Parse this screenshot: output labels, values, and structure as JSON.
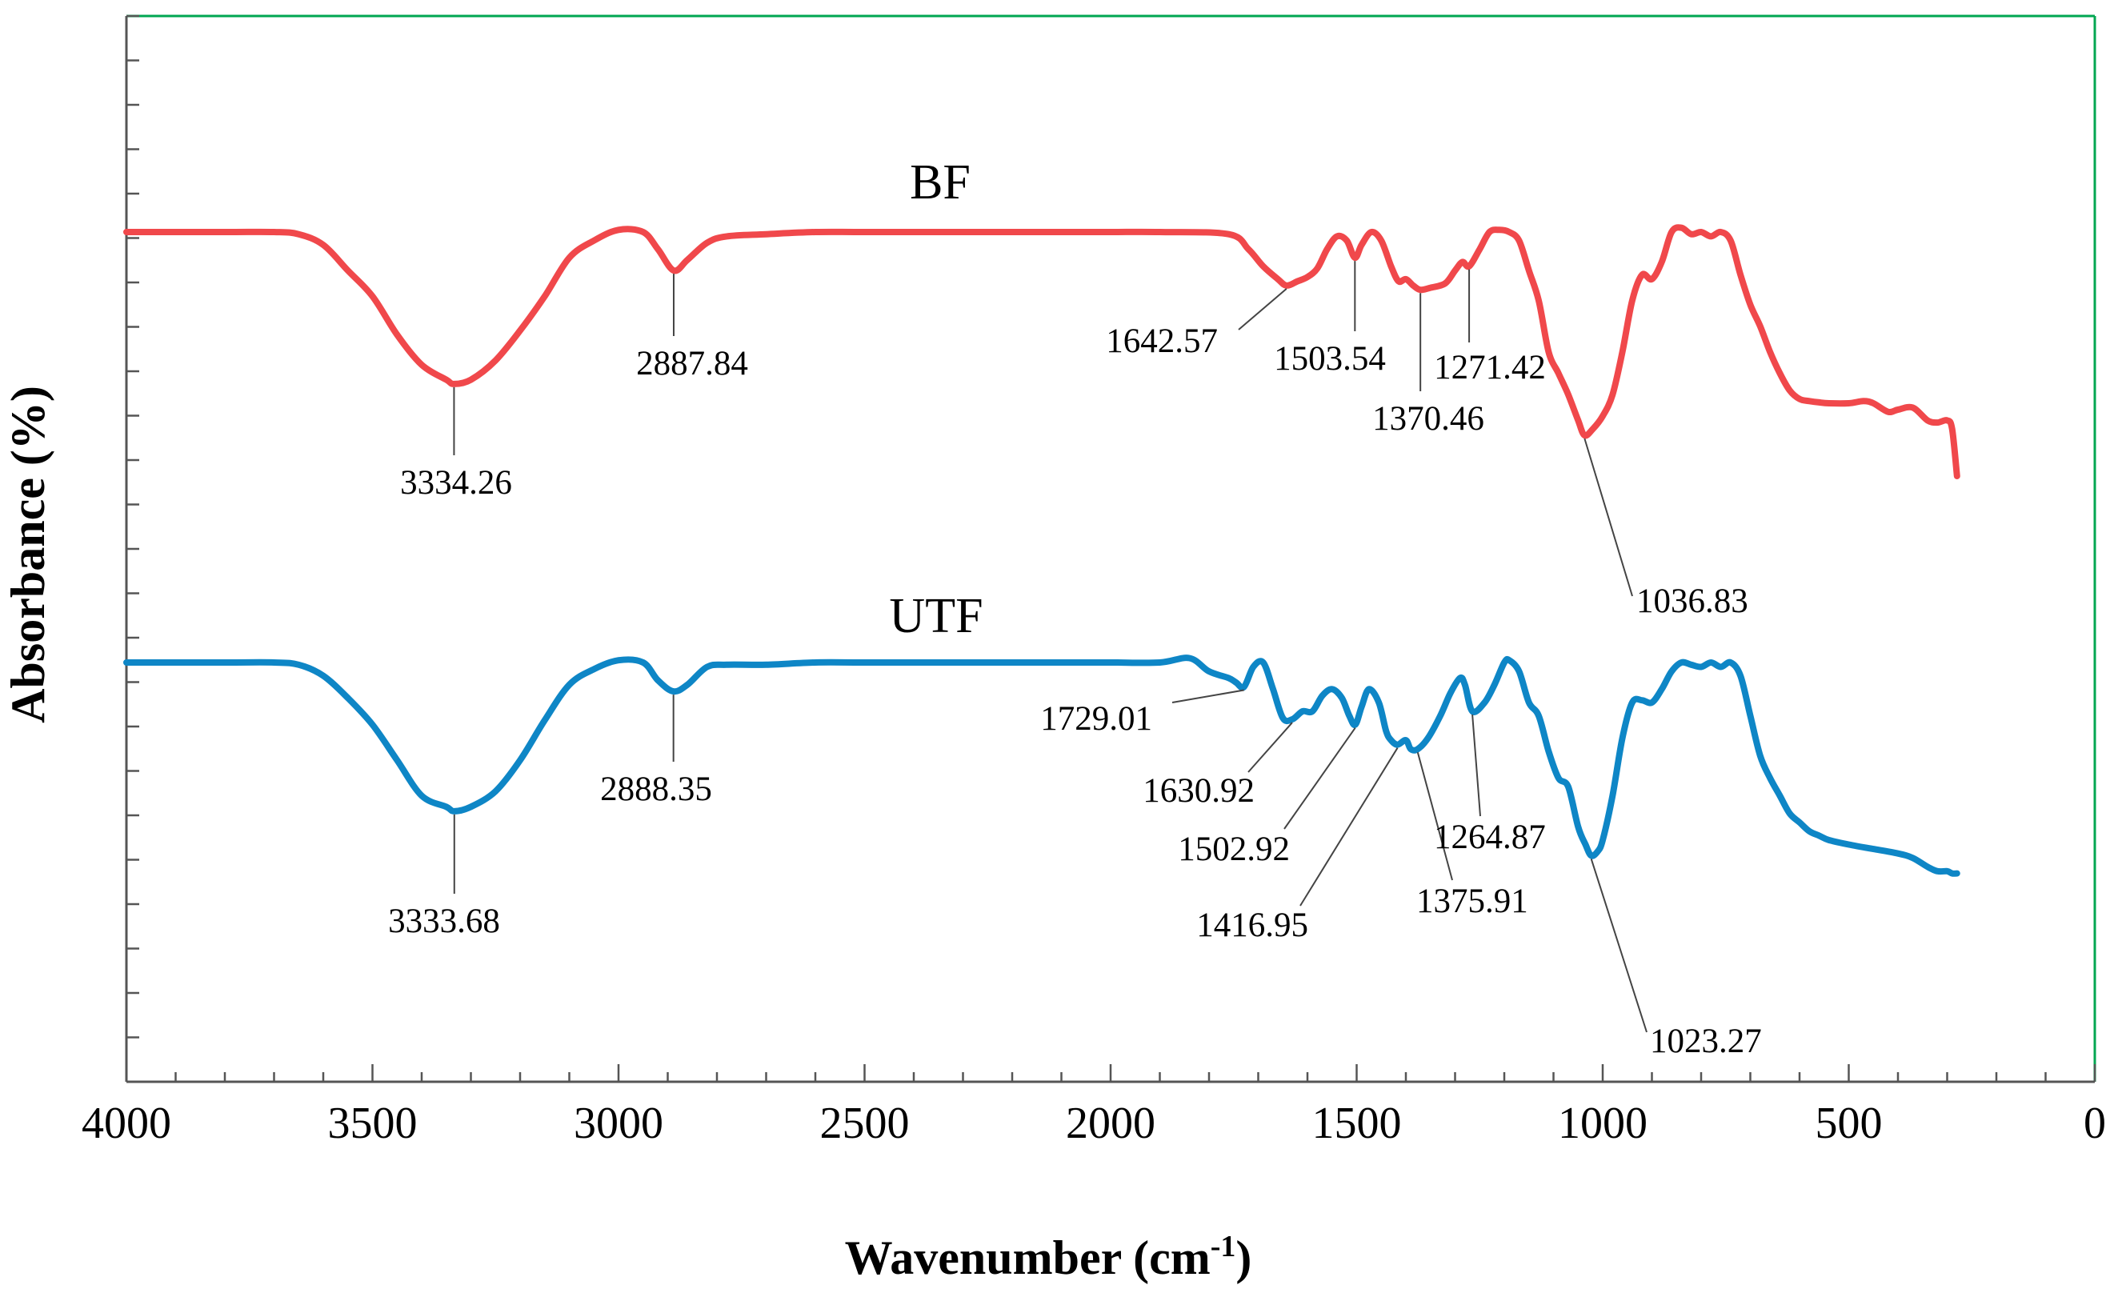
{
  "chart_data": {
    "type": "line",
    "xlabel": "Wavenumber (cm",
    "xlabel_sup": "-1",
    "xlabel_close": ")",
    "ylabel": "Absorbance (%)",
    "xlim": [
      4000,
      0
    ],
    "x_reversed": true,
    "x_ticks": [
      "4000",
      "3500",
      "3000",
      "2500",
      "2000",
      "1500",
      "1000",
      "500",
      "0"
    ],
    "grid": false,
    "frame_color": "#00a651",
    "series": [
      {
        "name": "BF",
        "color": "#f0484b",
        "x": [
          4000,
          3800,
          3700,
          3650,
          3600,
          3550,
          3500,
          3450,
          3400,
          3350,
          3334.26,
          3300,
          3250,
          3200,
          3150,
          3100,
          3050,
          3000,
          2950,
          2920,
          2887.84,
          2860,
          2820,
          2780,
          2700,
          2600,
          2500,
          2300,
          2100,
          2000,
          1900,
          1760,
          1720,
          1690,
          1660,
          1642.57,
          1620,
          1600,
          1580,
          1560,
          1540,
          1520,
          1503.54,
          1490,
          1470,
          1450,
          1430,
          1415,
          1400,
          1385,
          1370.46,
          1350,
          1320,
          1300,
          1285,
          1271.42,
          1250,
          1230,
          1210,
          1190,
          1170,
          1150,
          1130,
          1110,
          1090,
          1070,
          1050,
          1036.83,
          1020,
          1000,
          980,
          960,
          940,
          920,
          900,
          880,
          860,
          840,
          820,
          800,
          780,
          760,
          740,
          720,
          700,
          680,
          660,
          640,
          620,
          600,
          580,
          560,
          540,
          500,
          470,
          450,
          420,
          400,
          370,
          340,
          320,
          300,
          290,
          280
        ],
        "y": [
          100,
          100,
          100,
          99.5,
          97,
          91,
          85,
          76,
          69,
          65.5,
          64.5,
          65.5,
          70,
          77,
          85,
          94,
          98,
          100.5,
          100,
          96,
          91,
          93.5,
          97.5,
          99,
          99.5,
          100,
          100,
          100,
          100,
          100,
          100,
          99.5,
          96,
          92,
          89,
          87.5,
          88.5,
          89.5,
          91.5,
          96,
          99,
          98,
          94,
          97,
          100,
          98,
          92,
          88.5,
          89,
          87.5,
          86.5,
          87,
          88,
          91,
          93,
          92,
          96,
          100,
          100.5,
          100,
          98,
          91,
          84,
          72,
          67,
          62,
          56,
          52.5,
          54,
          57,
          62,
          72,
          84,
          90,
          89,
          93,
          100,
          101,
          99.5,
          100,
          99,
          100,
          98,
          90,
          83,
          78,
          72,
          67,
          63,
          61,
          60.5,
          60.2,
          60,
          60,
          60.5,
          60,
          58,
          58.5,
          59,
          56,
          55.5,
          56,
          54,
          43
        ]
      },
      {
        "name": "UTF",
        "color": "#0e86c6",
        "x": [
          4000,
          3800,
          3700,
          3650,
          3600,
          3550,
          3500,
          3450,
          3400,
          3350,
          3333.68,
          3300,
          3250,
          3200,
          3150,
          3100,
          3050,
          3000,
          2950,
          2920,
          2888.35,
          2860,
          2820,
          2780,
          2700,
          2600,
          2500,
          2300,
          2100,
          2000,
          1900,
          1840,
          1800,
          1760,
          1745,
          1729.01,
          1710,
          1690,
          1670,
          1650,
          1630.92,
          1610,
          1590,
          1570,
          1550,
          1530,
          1515,
          1502.92,
          1490,
          1475,
          1455,
          1440,
          1430,
          1416.95,
          1400,
          1390,
          1375.91,
          1355,
          1330,
          1310,
          1290,
          1280,
          1264.87,
          1240,
          1220,
          1200,
          1190,
          1170,
          1150,
          1130,
          1110,
          1090,
          1070,
          1050,
          1035,
          1023.27,
          1010,
          1000,
          980,
          960,
          940,
          920,
          900,
          880,
          860,
          840,
          820,
          800,
          780,
          760,
          740,
          720,
          700,
          680,
          660,
          640,
          620,
          600,
          580,
          560,
          540,
          500,
          450,
          400,
          370,
          340,
          320,
          300,
          290,
          280
        ],
        "y": [
          100,
          100,
          100,
          99.5,
          97,
          92,
          86,
          78,
          70,
          67.5,
          66.5,
          67.5,
          71,
          78,
          87,
          95,
          98.5,
          100.5,
          100,
          96,
          93.5,
          95,
          99,
          99.5,
          99.5,
          100,
          100,
          100,
          100,
          100,
          100,
          101,
          98,
          96.5,
          95.5,
          94.5,
          99,
          100,
          94,
          87.5,
          87.2,
          89,
          89,
          92.5,
          94,
          92,
          88,
          86,
          90,
          94,
          91,
          84.5,
          82.5,
          81.5,
          82.5,
          80.5,
          80.5,
          83,
          88,
          93,
          96.5,
          95,
          89,
          91,
          95,
          100,
          100.5,
          98,
          91,
          88,
          80,
          74,
          72,
          63,
          59,
          56.5,
          57.5,
          60,
          70,
          83,
          91,
          91.5,
          91,
          94,
          98,
          100,
          99.5,
          99,
          100,
          99,
          100,
          97,
          88,
          79,
          74,
          70,
          66,
          64,
          62,
          61,
          60,
          59,
          58,
          57,
          56,
          54,
          53,
          53,
          52.5,
          52.5
        ]
      }
    ],
    "annotations": [
      {
        "series": "BF",
        "text": "3334.26",
        "x": 3334.26
      },
      {
        "series": "BF",
        "text": "2887.84",
        "x": 2887.84
      },
      {
        "series": "BF",
        "text": "1642.57",
        "x": 1642.57
      },
      {
        "series": "BF",
        "text": "1503.54",
        "x": 1503.54
      },
      {
        "series": "BF",
        "text": "1370.46",
        "x": 1370.46
      },
      {
        "series": "BF",
        "text": "1271.42",
        "x": 1271.42
      },
      {
        "series": "BF",
        "text": "1036.83",
        "x": 1036.83
      },
      {
        "series": "UTF",
        "text": "3333.68",
        "x": 3333.68
      },
      {
        "series": "UTF",
        "text": "2888.35",
        "x": 2888.35
      },
      {
        "series": "UTF",
        "text": "1729.01",
        "x": 1729.01
      },
      {
        "series": "UTF",
        "text": "1630.92",
        "x": 1630.92
      },
      {
        "series": "UTF",
        "text": "1502.92",
        "x": 1502.92
      },
      {
        "series": "UTF",
        "text": "1416.95",
        "x": 1416.95
      },
      {
        "series": "UTF",
        "text": "1375.91",
        "x": 1375.91
      },
      {
        "series": "UTF",
        "text": "1264.87",
        "x": 1264.87
      },
      {
        "series": "UTF",
        "text": "1023.27",
        "x": 1023.27
      }
    ]
  }
}
